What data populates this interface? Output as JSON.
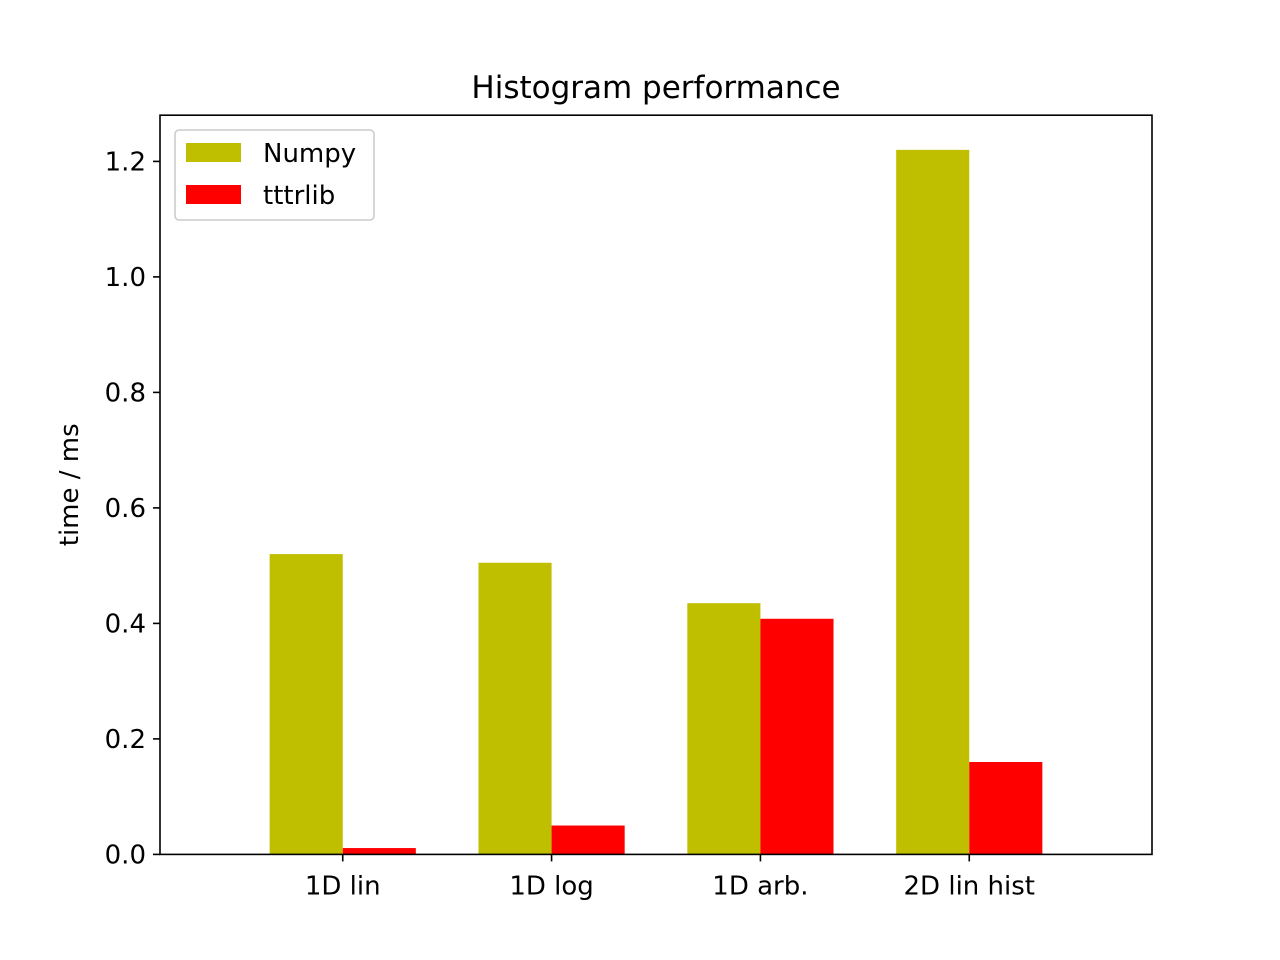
{
  "chart_data": {
    "type": "bar",
    "title": "Histogram performance",
    "xlabel": "",
    "ylabel": "time / ms",
    "categories": [
      "1D lin",
      "1D log",
      "1D arb.",
      "2D lin hist"
    ],
    "series": [
      {
        "name": "Numpy",
        "color": "#bfbf00",
        "values": [
          0.52,
          0.505,
          0.435,
          1.22
        ]
      },
      {
        "name": "tttrlib",
        "color": "#ff0000",
        "values": [
          0.011,
          0.05,
          0.408,
          0.16
        ]
      }
    ],
    "ylim": [
      0,
      1.28
    ],
    "yticks": [
      0.0,
      0.2,
      0.4,
      0.6,
      0.8,
      1.0,
      1.2
    ],
    "ytick_labels": [
      "0.0",
      "0.2",
      "0.4",
      "0.6",
      "0.8",
      "1.0",
      "1.2"
    ],
    "grid": false,
    "legend_position": "upper-left"
  }
}
